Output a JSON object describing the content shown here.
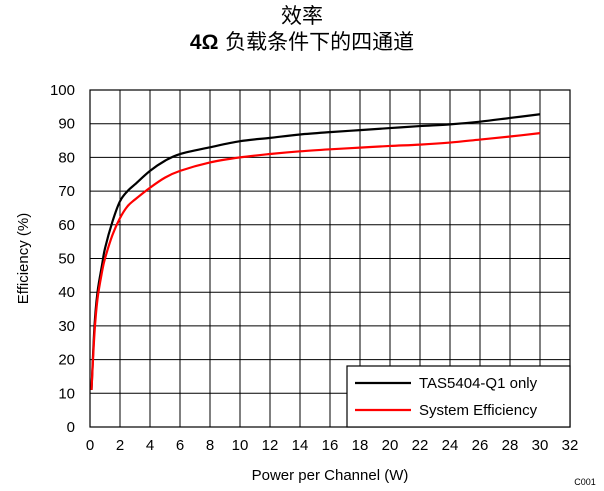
{
  "chart_data": {
    "type": "line",
    "title": "效率",
    "subtitle_prefix": "4Ω",
    "subtitle_rest": " 负载条件下的四通道",
    "xlabel": "Power per Channel (W)",
    "ylabel": "Efficiency  (%)",
    "xlim": [
      0,
      32
    ],
    "ylim": [
      0,
      100
    ],
    "xticks": [
      "0",
      "2",
      "4",
      "6",
      "8",
      "10",
      "12",
      "14",
      "16",
      "18",
      "20",
      "22",
      "24",
      "26",
      "28",
      "30",
      "32"
    ],
    "yticks": [
      "0",
      "10",
      "20",
      "30",
      "40",
      "50",
      "60",
      "70",
      "80",
      "90",
      "100"
    ],
    "grid": true,
    "legend_position": "bottom-right",
    "code": "C001",
    "series": [
      {
        "name": "TAS5404-Q1 only",
        "color": "#000000",
        "x": [
          0.1,
          0.3,
          0.5,
          0.8,
          1.0,
          1.5,
          2.0,
          2.5,
          3.0,
          4.0,
          5.0,
          6.0,
          8.0,
          10.0,
          12.0,
          14.0,
          16.0,
          18.0,
          20.0,
          22.0,
          24.0,
          26.0,
          28.0,
          30.0
        ],
        "y": [
          11,
          30,
          40,
          48,
          53,
          61,
          67,
          70,
          72,
          76,
          79,
          81,
          83,
          84.8,
          85.8,
          86.8,
          87.5,
          88.1,
          88.7,
          89.3,
          89.8,
          90.6,
          91.7,
          92.8
        ]
      },
      {
        "name": "System Efficiency",
        "color": "#ff0000",
        "x": [
          0.1,
          0.3,
          0.5,
          0.8,
          1.0,
          1.5,
          2.0,
          2.5,
          3.0,
          4.0,
          5.0,
          6.0,
          8.0,
          10.0,
          12.0,
          14.0,
          16.0,
          18.0,
          20.0,
          22.0,
          24.0,
          26.0,
          28.0,
          30.0
        ],
        "y": [
          11,
          28,
          38,
          46,
          50,
          57,
          62,
          65.5,
          67.5,
          71,
          74,
          76,
          78.5,
          80,
          81,
          81.8,
          82.4,
          82.9,
          83.4,
          83.8,
          84.4,
          85.3,
          86.2,
          87.2
        ]
      }
    ]
  }
}
